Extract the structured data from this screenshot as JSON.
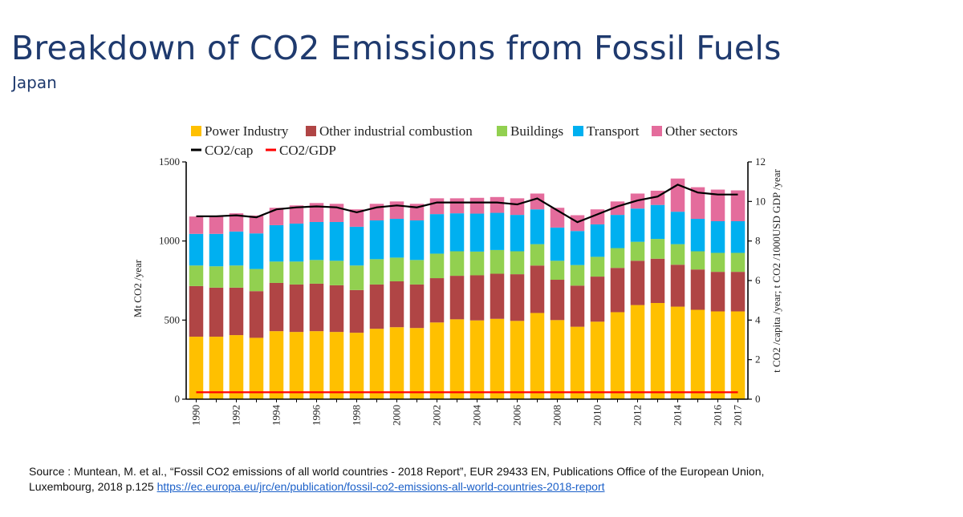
{
  "page": {
    "title": "Breakdown of CO2 Emissions from Fossil Fuels",
    "subtitle": "Japan"
  },
  "source": {
    "line1": "Source : Muntean, M. et al., “Fossil CO2 emissions of all world countries - 2018 Report”, EUR 29433 EN, Publications Office of the European Union,",
    "line2": "Luxembourg, 2018  p.125 ",
    "link_text": "https://ec.europa.eu/jrc/en/publication/fossil-co2-emissions-all-world-countries-2018-report"
  },
  "chart_data": {
    "type": "bar",
    "stacked": true,
    "categories": [
      "1990",
      "1991",
      "1992",
      "1993",
      "1994",
      "1995",
      "1996",
      "1997",
      "1998",
      "1999",
      "2000",
      "2001",
      "2002",
      "2003",
      "2004",
      "2005",
      "2006",
      "2007",
      "2008",
      "2009",
      "2010",
      "2011",
      "2012",
      "2013",
      "2014",
      "2015",
      "2016",
      "2017"
    ],
    "x_tick_labels": [
      "1990",
      "1992",
      "1994",
      "1996",
      "1998",
      "2000",
      "2002",
      "2004",
      "2006",
      "2008",
      "2010",
      "2012",
      "2014",
      "2016",
      "2017"
    ],
    "y_label_left": "Mt CO2 /year",
    "y_label_right": "t CO2 /capita /year; t CO2 /1000USD GDP /year",
    "y_left_ticks": [
      "0",
      "500",
      "1000",
      "1500"
    ],
    "y_right_ticks": [
      "0",
      "2",
      "4",
      "6",
      "8",
      "10",
      "12"
    ],
    "ylim_left": [
      0,
      1500
    ],
    "ylim_right": [
      0,
      12
    ],
    "legend_position": "top",
    "series": [
      {
        "name": "Power Industry",
        "color": "#ffc000",
        "values": [
          395,
          395,
          405,
          388,
          430,
          425,
          430,
          425,
          420,
          445,
          455,
          450,
          485,
          505,
          498,
          508,
          495,
          545,
          500,
          458,
          490,
          550,
          595,
          608,
          585,
          565,
          555,
          555
        ]
      },
      {
        "name": "Other industrial combustion",
        "color": "#b04545",
        "values": [
          320,
          310,
          300,
          295,
          305,
          300,
          300,
          295,
          270,
          280,
          290,
          275,
          280,
          275,
          285,
          285,
          295,
          300,
          255,
          260,
          285,
          280,
          280,
          280,
          265,
          255,
          250,
          250
        ]
      },
      {
        "name": "Buildings",
        "color": "#92d050",
        "values": [
          130,
          135,
          140,
          140,
          135,
          145,
          150,
          155,
          155,
          160,
          150,
          155,
          155,
          155,
          150,
          150,
          145,
          135,
          120,
          130,
          125,
          125,
          120,
          125,
          130,
          115,
          120,
          120
        ]
      },
      {
        "name": "Transport",
        "color": "#00b0f0",
        "values": [
          200,
          205,
          215,
          225,
          230,
          240,
          240,
          245,
          245,
          245,
          245,
          250,
          250,
          240,
          240,
          235,
          230,
          220,
          210,
          215,
          205,
          210,
          210,
          215,
          205,
          205,
          200,
          200
        ]
      },
      {
        "name": "Other sectors",
        "color": "#e46c9c",
        "values": [
          110,
          112,
          115,
          113,
          110,
          115,
          120,
          115,
          110,
          105,
          110,
          105,
          100,
          95,
          100,
          100,
          105,
          100,
          125,
          100,
          95,
          85,
          95,
          90,
          210,
          200,
          200,
          195
        ]
      }
    ],
    "lines": [
      {
        "name": "CO2/cap",
        "color": "#000000",
        "axis": "right",
        "values": [
          9.25,
          9.25,
          9.3,
          9.2,
          9.6,
          9.7,
          9.75,
          9.7,
          9.45,
          9.7,
          9.8,
          9.7,
          9.95,
          9.95,
          9.95,
          9.95,
          9.85,
          10.15,
          9.55,
          8.95,
          9.35,
          9.75,
          10.05,
          10.25,
          10.85,
          10.45,
          10.35,
          10.35
        ]
      },
      {
        "name": "CO2/GDP",
        "color": "#ff0000",
        "axis": "right",
        "values": [
          0.35,
          0.35,
          0.35,
          0.35,
          0.35,
          0.35,
          0.35,
          0.35,
          0.35,
          0.35,
          0.35,
          0.35,
          0.35,
          0.35,
          0.35,
          0.35,
          0.35,
          0.35,
          0.35,
          0.35,
          0.35,
          0.35,
          0.35,
          0.35,
          0.35,
          0.35,
          0.35,
          0.35
        ]
      }
    ]
  }
}
